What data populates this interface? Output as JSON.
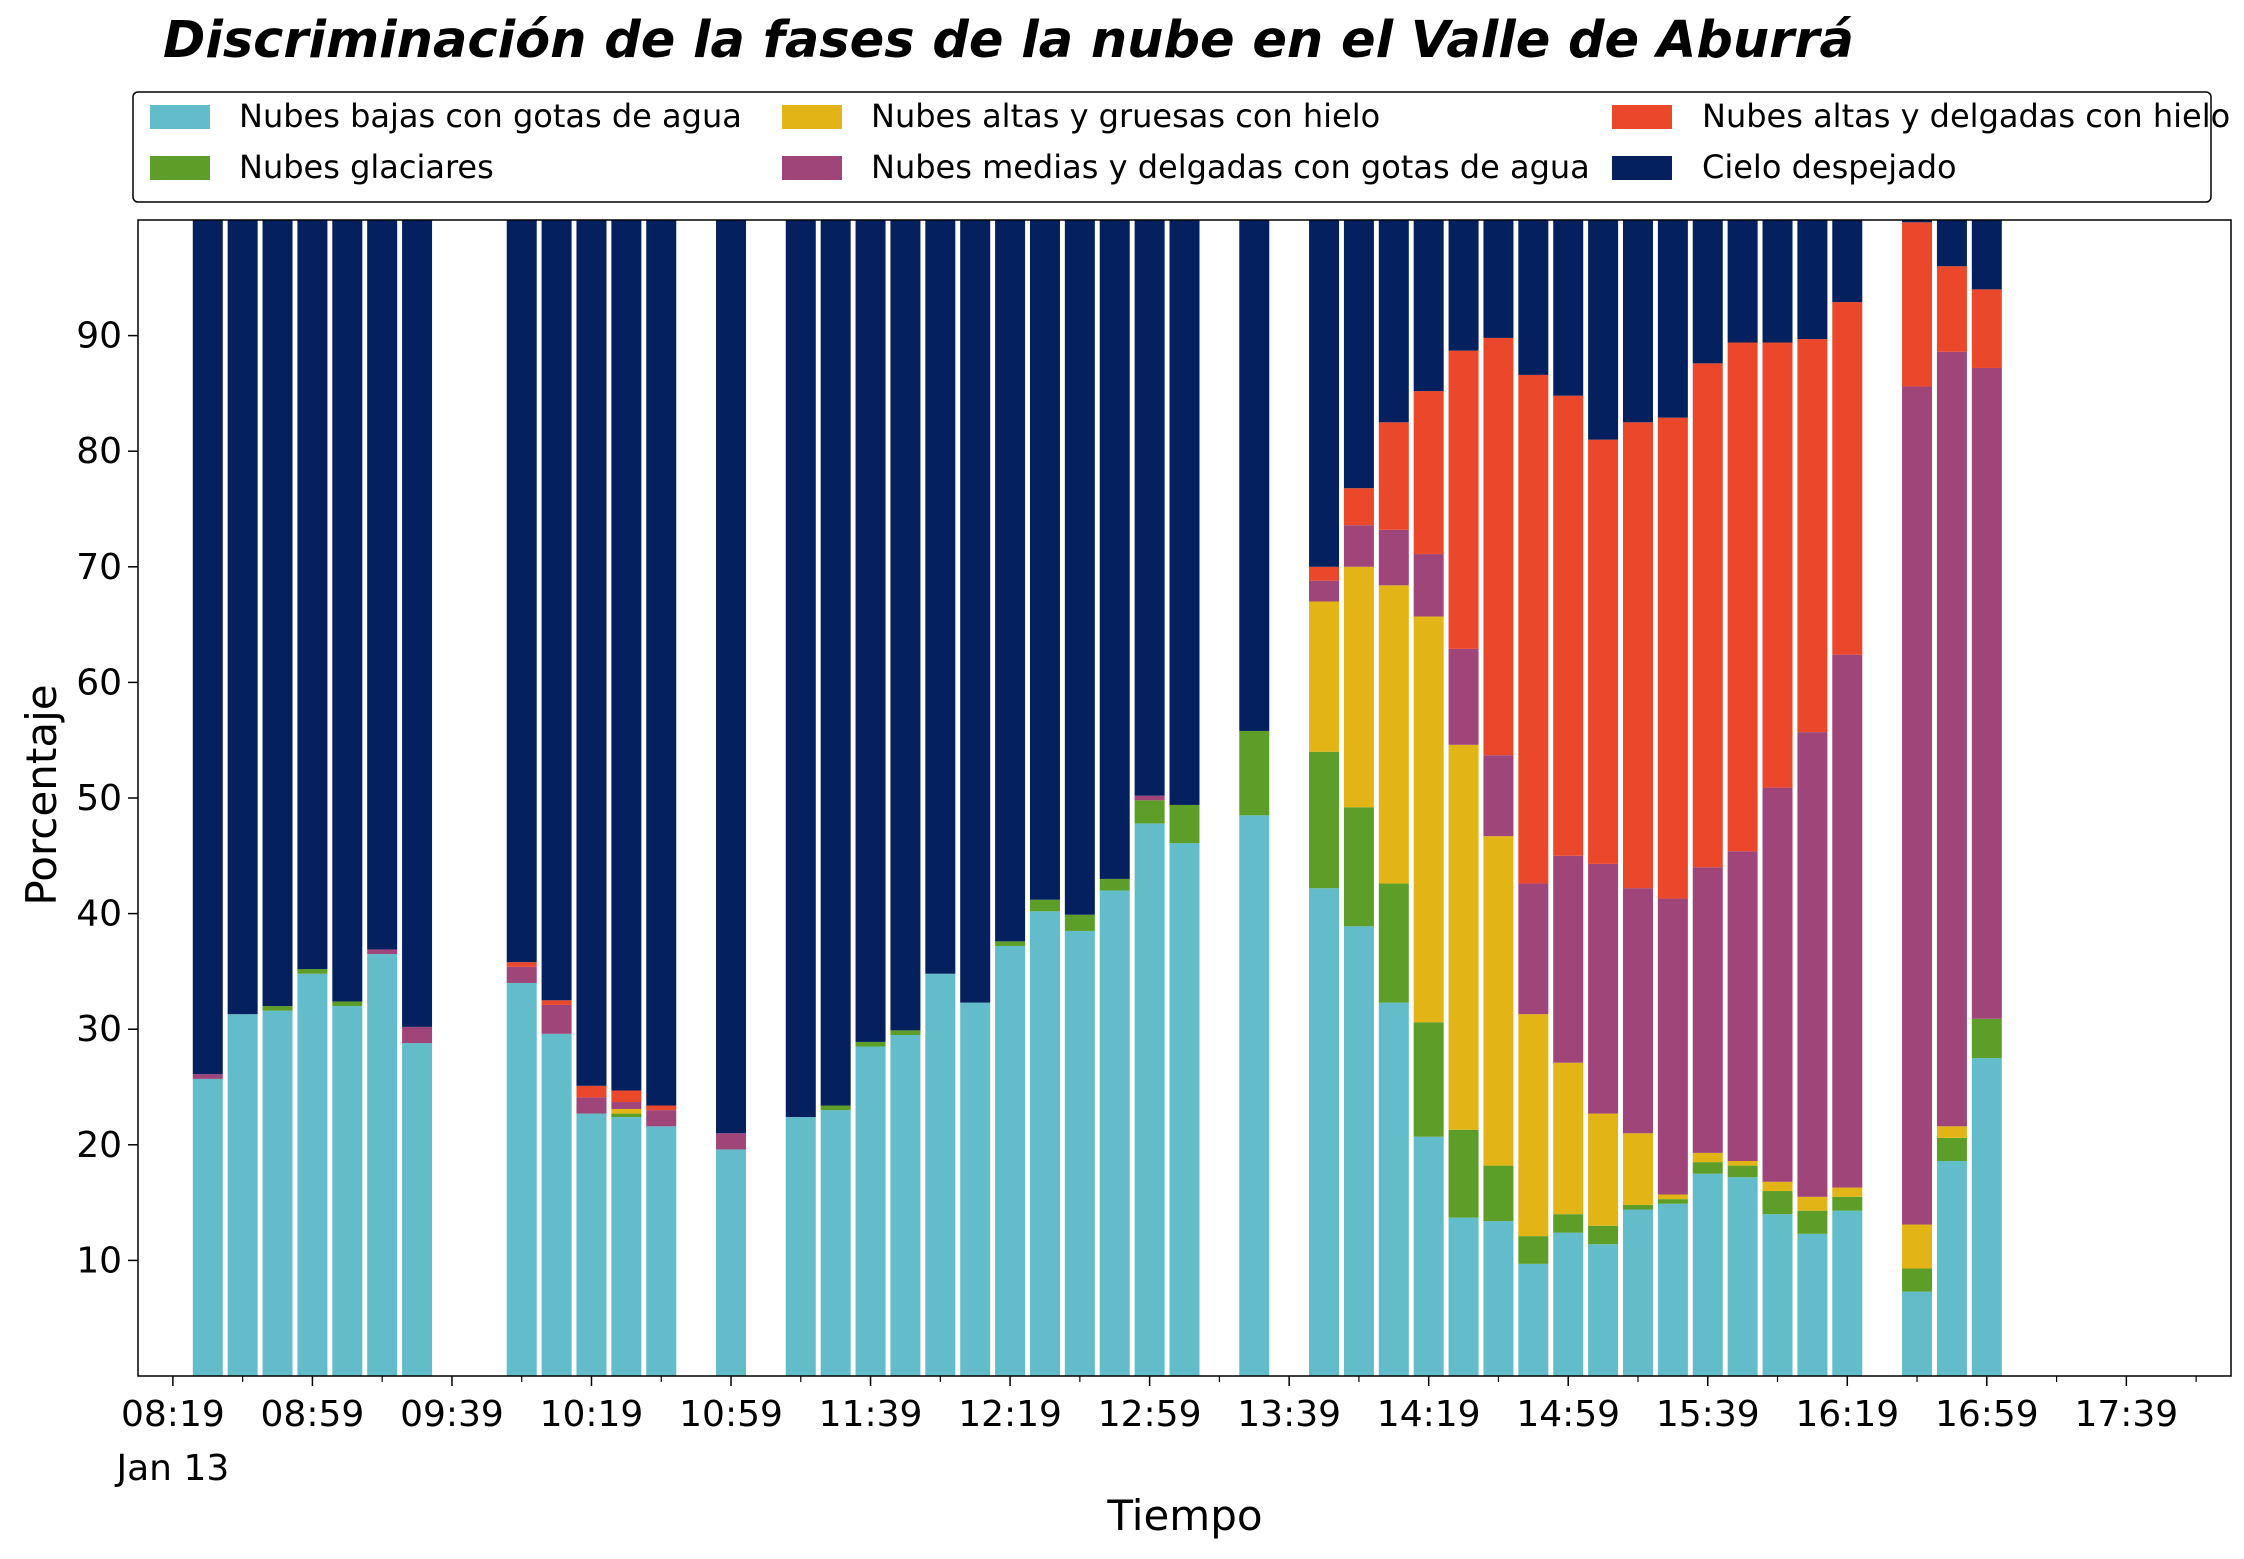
{
  "chart_data": {
    "type": "bar",
    "stacked": true,
    "title": "Discriminación de la fases de la nube en el Valle de Aburrá",
    "xlabel": "Tiempo",
    "ylabel": "Porcentaje",
    "ylim": [
      0,
      100
    ],
    "yticks": [
      10,
      20,
      30,
      40,
      50,
      60,
      70,
      80,
      90
    ],
    "xlim_minutes": [
      -10,
      590
    ],
    "xtick_minutes": [
      0,
      40,
      80,
      120,
      160,
      200,
      240,
      280,
      320,
      360,
      400,
      440,
      480,
      520,
      560
    ],
    "xtick_labels": [
      "08:19",
      "08:59",
      "09:39",
      "10:19",
      "10:59",
      "11:39",
      "12:19",
      "12:59",
      "13:39",
      "14:19",
      "14:59",
      "15:39",
      "16:19",
      "16:59",
      "17:39"
    ],
    "xtick_sublabel": "Jan 13",
    "grid": false,
    "legend_position": "top",
    "categories_minutes": [
      10,
      20,
      30,
      40,
      50,
      60,
      70,
      100,
      110,
      120,
      130,
      140,
      160,
      180,
      190,
      200,
      210,
      220,
      230,
      240,
      250,
      260,
      270,
      280,
      290,
      310,
      330,
      340,
      350,
      360,
      370,
      380,
      390,
      400,
      410,
      420,
      430,
      440,
      450,
      460,
      470,
      480,
      500,
      510,
      520
    ],
    "series": [
      {
        "name": "Nubes bajas con gotas de agua",
        "color": "#63BCC9",
        "values": [
          25.7,
          31.3,
          31.6,
          34.8,
          32.0,
          36.5,
          28.8,
          34.0,
          29.6,
          22.7,
          22.4,
          21.6,
          19.6,
          22.4,
          23.0,
          28.5,
          29.5,
          34.8,
          32.3,
          37.2,
          40.2,
          38.5,
          42.0,
          47.8,
          46.1,
          48.5,
          42.2,
          38.9,
          32.3,
          20.7,
          13.7,
          13.4,
          9.7,
          12.4,
          11.4,
          14.4,
          14.9,
          17.5,
          17.2,
          14.0,
          12.3,
          14.3,
          7.3,
          18.6,
          27.5
        ]
      },
      {
        "name": "Nubes glaciares",
        "color": "#5C9E28",
        "values": [
          0,
          0,
          0.4,
          0.4,
          0.4,
          0,
          0,
          0,
          0,
          0,
          0.3,
          0,
          0,
          0,
          0.4,
          0.4,
          0.4,
          0,
          0,
          0.4,
          1.0,
          1.4,
          1.0,
          2.0,
          3.3,
          7.3,
          11.8,
          10.3,
          10.3,
          9.9,
          7.6,
          4.8,
          2.4,
          1.6,
          1.6,
          0.4,
          0.4,
          1.0,
          1.0,
          2.0,
          2.0,
          1.2,
          2.0,
          2.0,
          3.4
        ]
      },
      {
        "name": "Nubes altas y gruesas con hielo",
        "color": "#E2B416",
        "values": [
          0,
          0,
          0,
          0,
          0,
          0,
          0,
          0,
          0,
          0,
          0.4,
          0,
          0,
          0,
          0,
          0,
          0,
          0,
          0,
          0,
          0,
          0,
          0,
          0,
          0,
          0,
          13.0,
          20.8,
          25.8,
          35.1,
          33.3,
          28.5,
          19.2,
          13.1,
          9.7,
          6.2,
          0.4,
          0.8,
          0.4,
          0.8,
          1.2,
          0.8,
          3.8,
          1.0,
          0
        ]
      },
      {
        "name": "Nubes medias y delgadas con gotas de agua",
        "color": "#A04579",
        "values": [
          0.4,
          0,
          0,
          0,
          0,
          0.4,
          1.4,
          1.4,
          2.5,
          1.4,
          0.6,
          1.4,
          1.4,
          0,
          0,
          0,
          0,
          0,
          0,
          0,
          0,
          0,
          0,
          0.4,
          0,
          0,
          1.8,
          3.6,
          4.8,
          5.4,
          8.3,
          7.0,
          11.3,
          17.9,
          21.6,
          21.2,
          25.6,
          24.7,
          26.8,
          34.1,
          40.2,
          46.1,
          72.5,
          67.0,
          56.3
        ]
      },
      {
        "name": "Nubes altas y delgadas con hielo",
        "color": "#EB472A",
        "values": [
          0,
          0,
          0,
          0,
          0,
          0,
          0,
          0.4,
          0.4,
          1.0,
          1.0,
          0.4,
          0,
          0,
          0,
          0,
          0,
          0,
          0,
          0,
          0,
          0,
          0,
          0,
          0,
          0,
          1.2,
          3.2,
          9.3,
          14.1,
          25.8,
          36.1,
          44.0,
          39.8,
          36.7,
          40.3,
          41.6,
          43.6,
          44.0,
          38.5,
          34.0,
          30.5,
          14.2,
          7.4,
          6.8
        ]
      },
      {
        "name": "Cielo despejado",
        "color": "#04205E",
        "values": [
          73.9,
          68.7,
          68.0,
          64.8,
          67.6,
          63.1,
          69.8,
          64.2,
          67.5,
          74.9,
          75.3,
          76.6,
          79.0,
          77.6,
          76.6,
          71.1,
          70.1,
          65.2,
          67.7,
          62.4,
          58.8,
          60.1,
          57.0,
          49.8,
          50.6,
          44.2,
          30.0,
          23.2,
          17.5,
          14.8,
          11.3,
          10.2,
          13.4,
          15.2,
          19.0,
          17.5,
          17.1,
          12.4,
          10.6,
          10.6,
          10.3,
          7.1,
          0.2,
          4.0,
          6.0
        ]
      }
    ]
  }
}
